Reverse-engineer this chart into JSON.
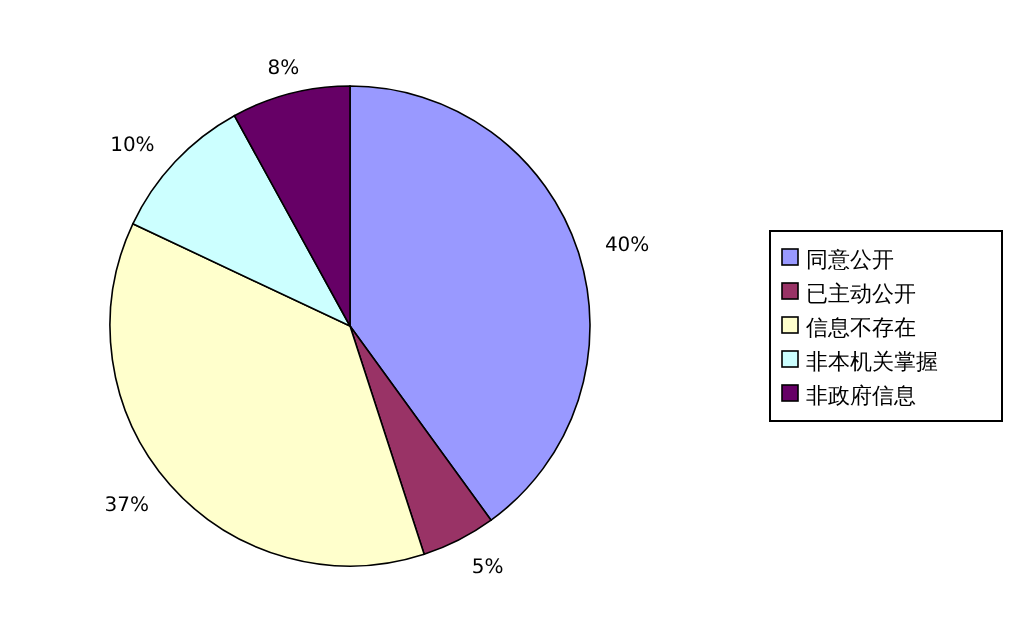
{
  "chart_data": {
    "type": "pie",
    "categories": [
      "同意公开",
      "已主动公开",
      "信息不存在",
      "非本机关掌握",
      "非政府信息"
    ],
    "values": [
      40,
      5,
      37,
      10,
      8
    ],
    "colors": [
      "#9999ff",
      "#993366",
      "#ffffcc",
      "#ccffff",
      "#660066"
    ],
    "value_labels": [
      "40%",
      "5%",
      "37%",
      "10%",
      "8%"
    ],
    "legend": "right"
  }
}
